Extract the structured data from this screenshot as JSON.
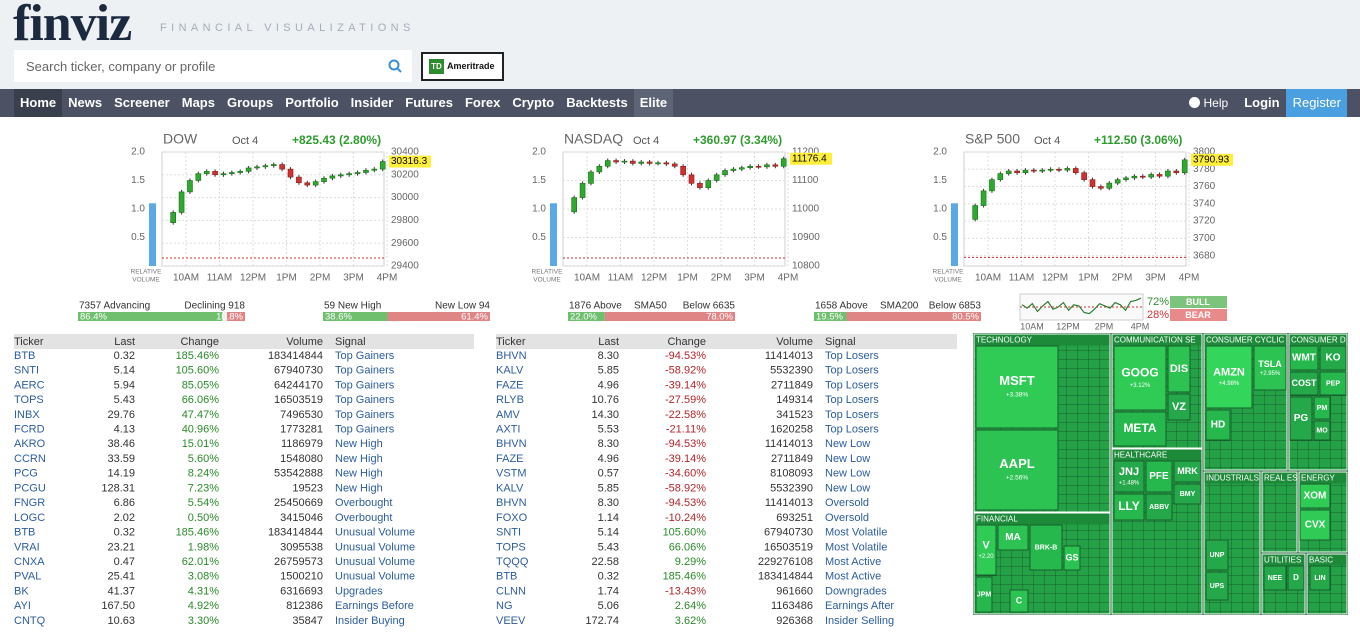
{
  "header": {
    "logo": "finviz",
    "tagline": "FINANCIAL VISUALIZATIONS",
    "search_placeholder": "Search ticker, company or profile",
    "broker_mark": "TD",
    "broker": "Ameritrade"
  },
  "nav": {
    "items": [
      "Home",
      "News",
      "Screener",
      "Maps",
      "Groups",
      "Portfolio",
      "Insider",
      "Futures",
      "Forex",
      "Crypto",
      "Backtests",
      "Elite"
    ],
    "active": "Home",
    "right": [
      "Help",
      "Login",
      "Register"
    ]
  },
  "indices": [
    {
      "type": "candlestick",
      "title": "DOW",
      "date": "Oct 4",
      "change": "+825.43 (2.80%)",
      "last": 30316.3,
      "values": [
        29780,
        29870,
        30050,
        30150,
        30210,
        30230,
        30200,
        30210,
        30220,
        30230,
        30260,
        30270,
        30280,
        30290,
        30250,
        30180,
        30130,
        30110,
        30140,
        30170,
        30190,
        30200,
        30210,
        30220,
        30240,
        30250,
        30316.3
      ],
      "prev_close": 29470,
      "ylim": [
        29400,
        30400
      ],
      "yticks": [
        30400,
        30200,
        30000,
        29800,
        29600,
        29400
      ],
      "volume": 1.1,
      "vol_ylim": [
        0,
        2
      ],
      "vol_yticks": [
        {
          "value": 2,
          "label": "2.0"
        },
        1.5,
        {
          "value": 1,
          "label": "1.0"
        },
        0.5
      ],
      "xlabels": [
        "10AM",
        "11AM",
        "12PM",
        "1PM",
        "2PM",
        "3PM",
        "4PM"
      ],
      "volume_label": [
        "RELATIVE",
        "VOLUME"
      ]
    },
    {
      "type": "candlestick",
      "title": "NASDAQ",
      "date": "Oct 4",
      "change": "+360.97 (3.34%)",
      "last": 11176.4,
      "values": [
        10990,
        11040,
        11090,
        11130,
        11150,
        11170,
        11165,
        11168,
        11160,
        11165,
        11160,
        11162,
        11158,
        11150,
        11120,
        11090,
        11075,
        11100,
        11120,
        11135,
        11140,
        11145,
        11150,
        11148,
        11155,
        11150,
        11176.4
      ],
      "prev_close": 10828,
      "ylim": [
        10800,
        11200
      ],
      "yticks": [
        11200,
        11100,
        11000,
        10900,
        10800
      ],
      "volume": 1.1,
      "vol_ylim": [
        0,
        2
      ],
      "vol_yticks": [
        {
          "value": 2,
          "label": "2.0"
        },
        1.5,
        {
          "value": 1,
          "label": "1.0"
        },
        0.5
      ],
      "xlabels": [
        "10AM",
        "11AM",
        "12PM",
        "1PM",
        "2PM",
        "3PM",
        "4PM"
      ],
      "volume_label": [
        "RELATIVE",
        "VOLUME"
      ]
    },
    {
      "type": "candlestick",
      "title": "S&P 500",
      "date": "Oct 4",
      "change": "+112.50 (3.06%)",
      "last": 3790.93,
      "values": [
        3722,
        3738,
        3755,
        3768,
        3775,
        3778,
        3776,
        3779,
        3778,
        3779,
        3780,
        3779,
        3781,
        3776,
        3768,
        3760,
        3758,
        3764,
        3768,
        3770,
        3772,
        3771,
        3774,
        3772,
        3778,
        3776,
        3790.93
      ],
      "prev_close": 3678,
      "ylim": [
        3668,
        3800
      ],
      "yticks": [
        3800,
        3780,
        3760,
        3740,
        3720,
        3700,
        3680
      ],
      "volume": 1.1,
      "vol_ylim": [
        0,
        2
      ],
      "vol_yticks": [
        {
          "value": 2,
          "label": "2.0"
        },
        1.5,
        {
          "value": 1,
          "label": "1.0"
        },
        0.5
      ],
      "xlabels": [
        "10AM",
        "11AM",
        "12PM",
        "1PM",
        "2PM",
        "3PM",
        "4PM"
      ],
      "volume_label": [
        "RELATIVE",
        "VOLUME"
      ]
    }
  ],
  "breadth": [
    {
      "left_text": "7357 Advancing",
      "right_text": "Declining 918",
      "left_pct": {
        "value": 86.4,
        "label": "86.4%"
      },
      "right_pct": {
        "value": 10.8,
        "label": "10.8%"
      }
    },
    {
      "left_text": "59 New High",
      "right_text": "New Low 94",
      "left_pct": {
        "value": 38.6,
        "label": "38.6%"
      },
      "right_pct": {
        "value": 61.4,
        "label": "61.4%"
      }
    },
    {
      "left_text": "1876 Above",
      "mid_text": "SMA50",
      "right_text": "Below 6635",
      "left_pct": {
        "value": 22.0,
        "label": "22.0%"
      },
      "right_pct": {
        "value": 78.0,
        "label": "78.0%"
      }
    },
    {
      "left_text": "1658 Above",
      "mid_text": "SMA200",
      "right_text": "Below 6853",
      "left_pct": {
        "value": 19.5,
        "label": "19.5%"
      },
      "right_pct": {
        "value": 80.5,
        "label": "80.5%"
      }
    }
  ],
  "sentiment": {
    "type": "line",
    "values": [
      0.2,
      -0.1,
      0.3,
      -0.4,
      0.1,
      0.5,
      -0.2,
      0.0,
      0.4,
      -0.3,
      0.2,
      0.1,
      -0.5,
      -0.6,
      -0.2,
      0.3,
      0.1,
      -0.1,
      0.4,
      0.2,
      -0.3,
      0.5,
      0.6,
      0.8
    ],
    "ylim": [
      -1,
      1
    ],
    "xlabels": [
      "10AM",
      "12PM",
      "2PM",
      "4PM"
    ],
    "bull": {
      "value": 72,
      "label": "72%"
    },
    "bear": {
      "value": 28,
      "label": "28%"
    },
    "bull_text": "BULL",
    "bear_text": "BEAR"
  },
  "tables": [
    {
      "columns": [
        "Ticker",
        "Last",
        "Change",
        "Volume",
        "Signal"
      ],
      "rows": [
        [
          "BTB",
          "0.32",
          "185.46%",
          "183414844",
          "Top Gainers"
        ],
        [
          "SNTI",
          "5.14",
          "105.60%",
          "67940730",
          "Top Gainers"
        ],
        [
          "AERC",
          "5.94",
          "85.05%",
          "64244170",
          "Top Gainers"
        ],
        [
          "TOPS",
          "5.43",
          "66.06%",
          "16503519",
          "Top Gainers"
        ],
        [
          "INBX",
          "29.76",
          "47.47%",
          "7496530",
          "Top Gainers"
        ],
        [
          "FCRD",
          "4.13",
          "40.96%",
          "1773281",
          "Top Gainers"
        ],
        [
          "AKRO",
          "38.46",
          "15.01%",
          "1186979",
          "New High"
        ],
        [
          "CCRN",
          "33.59",
          "5.60%",
          "1548080",
          "New High"
        ],
        [
          "PCG",
          "14.19",
          "8.24%",
          "53542888",
          "New High"
        ],
        [
          "PCGU",
          "128.31",
          "7.23%",
          "19523",
          "New High"
        ],
        [
          "FNGR",
          "6.86",
          "5.54%",
          "25450669",
          "Overbought"
        ],
        [
          "LOGC",
          "2.02",
          "0.50%",
          "3415046",
          "Overbought"
        ],
        [
          "BTB",
          "0.32",
          "185.46%",
          "183414844",
          "Unusual Volume"
        ],
        [
          "VRAI",
          "23.21",
          "1.98%",
          "3095538",
          "Unusual Volume"
        ],
        [
          "CNXA",
          "0.47",
          "62.01%",
          "26759573",
          "Unusual Volume"
        ],
        [
          "PVAL",
          "25.41",
          "3.08%",
          "1500210",
          "Unusual Volume"
        ],
        [
          "BK",
          "41.37",
          "4.31%",
          "6316693",
          "Upgrades"
        ],
        [
          "AYI",
          "167.50",
          "4.92%",
          "812386",
          "Earnings Before"
        ],
        [
          "CNTQ",
          "10.63",
          "3.30%",
          "35847",
          "Insider Buying"
        ]
      ]
    },
    {
      "columns": [
        "Ticker",
        "Last",
        "Change",
        "Volume",
        "Signal"
      ],
      "rows": [
        [
          "BHVN",
          "8.30",
          "-94.53%",
          "11414013",
          "Top Losers"
        ],
        [
          "KALV",
          "5.85",
          "-58.92%",
          "5532390",
          "Top Losers"
        ],
        [
          "FAZE",
          "4.96",
          "-39.14%",
          "2711849",
          "Top Losers"
        ],
        [
          "RLYB",
          "10.76",
          "-27.59%",
          "149314",
          "Top Losers"
        ],
        [
          "AMV",
          "14.30",
          "-22.58%",
          "341523",
          "Top Losers"
        ],
        [
          "AXTI",
          "5.53",
          "-21.11%",
          "1620258",
          "Top Losers"
        ],
        [
          "BHVN",
          "8.30",
          "-94.53%",
          "11414013",
          "New Low"
        ],
        [
          "FAZE",
          "4.96",
          "-39.14%",
          "2711849",
          "New Low"
        ],
        [
          "VSTM",
          "0.57",
          "-34.60%",
          "8108093",
          "New Low"
        ],
        [
          "KALV",
          "5.85",
          "-58.92%",
          "5532390",
          "New Low"
        ],
        [
          "BHVN",
          "8.30",
          "-94.53%",
          "11414013",
          "Oversold"
        ],
        [
          "FOXO",
          "1.14",
          "-10.24%",
          "693251",
          "Oversold"
        ],
        [
          "SNTI",
          "5.14",
          "105.60%",
          "67940730",
          "Most Volatile"
        ],
        [
          "TOPS",
          "5.43",
          "66.06%",
          "16503519",
          "Most Volatile"
        ],
        [
          "TQQQ",
          "22.58",
          "9.29%",
          "229276108",
          "Most Active"
        ],
        [
          "BTB",
          "0.32",
          "185.46%",
          "183414844",
          "Most Active"
        ],
        [
          "CLNN",
          "1.74",
          "-13.43%",
          "961660",
          "Downgrades"
        ],
        [
          "NG",
          "5.06",
          "2.64%",
          "1163486",
          "Earnings After"
        ],
        [
          "VEEV",
          "172.74",
          "3.62%",
          "926368",
          "Insider Selling"
        ]
      ]
    }
  ],
  "heatmap": {
    "sectors": [
      "TECHNOLOGY",
      "COMMUNICATION SE",
      "CONSUMER CYCLIC",
      "CONSUMER D",
      "HEALTHCARE",
      "INDUSTRIALS",
      "REAL ES",
      "ENERGY",
      "FINANCIAL",
      "UTILITIES",
      "BASIC"
    ],
    "tiles": [
      {
        "ticker": "MSFT",
        "change": "+3.38%"
      },
      {
        "ticker": "AAPL",
        "change": "+2.56%"
      },
      {
        "ticker": "GOOG",
        "change": "+3.12%"
      },
      {
        "ticker": "META"
      },
      {
        "ticker": "DIS"
      },
      {
        "ticker": "VZ"
      },
      {
        "ticker": "AMZN",
        "change": "+4.98%"
      },
      {
        "ticker": "TSLA",
        "change": "+2.95%"
      },
      {
        "ticker": "HD"
      },
      {
        "ticker": "WMT"
      },
      {
        "ticker": "KO"
      },
      {
        "ticker": "COST"
      },
      {
        "ticker": "PEP"
      },
      {
        "ticker": "PG"
      },
      {
        "ticker": "PM"
      },
      {
        "ticker": "MO"
      },
      {
        "ticker": "JNJ",
        "change": "+1.48%"
      },
      {
        "ticker": "PFE"
      },
      {
        "ticker": "MRK"
      },
      {
        "ticker": "LLY"
      },
      {
        "ticker": "ABBV"
      },
      {
        "ticker": "BMY"
      },
      {
        "ticker": "V",
        "change": "+2.20"
      },
      {
        "ticker": "MA"
      },
      {
        "ticker": "BRK-B"
      },
      {
        "ticker": "JPM"
      },
      {
        "ticker": "GS"
      },
      {
        "ticker": "C"
      },
      {
        "ticker": "XOM"
      },
      {
        "ticker": "CVX"
      },
      {
        "ticker": "UNP"
      },
      {
        "ticker": "UPS"
      },
      {
        "ticker": "NEE"
      },
      {
        "ticker": "D"
      },
      {
        "ticker": "LIN"
      }
    ]
  }
}
